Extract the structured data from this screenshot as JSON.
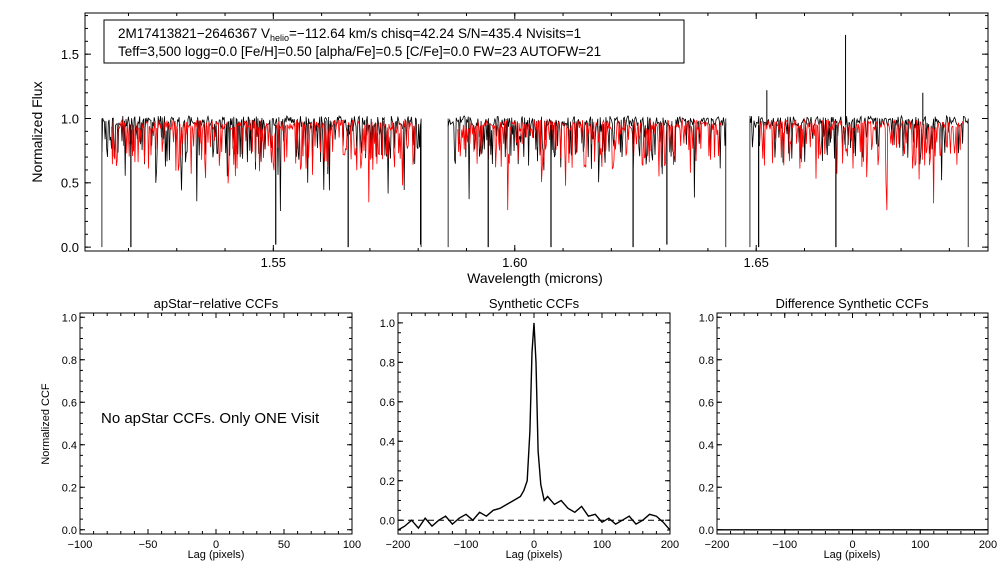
{
  "chart_data": [
    {
      "type": "line",
      "panel": "spectrum",
      "info_line1_a": "2M17413821−2646367  V",
      "info_line1_sub": "helio",
      "info_line1_b": "=−112.64 km/s  chisq=42.24  S/N=435.4  Nvisits=1",
      "info_line2": "Teff=3,500 logg=0.0 [Fe/H]=0.50 [alpha/Fe]=0.5 [C/Fe]=0.0 FW=23 AUTOFW=21",
      "xlabel": "Wavelength (microns)",
      "ylabel": "Normalized Flux",
      "xlim": [
        1.511,
        1.698
      ],
      "ylim": [
        -0.03,
        1.82
      ],
      "xticks": [
        1.55,
        1.6,
        1.65
      ],
      "xtick_labels": [
        "1.55",
        "1.60",
        "1.65"
      ],
      "yticks": [
        0.0,
        0.5,
        1.0,
        1.5
      ],
      "ytick_labels": [
        "0.0",
        "0.5",
        "1.0",
        "1.5"
      ],
      "chips": [
        [
          1.5145,
          1.5806
        ],
        [
          1.5862,
          1.6437
        ],
        [
          1.6487,
          1.6939
        ]
      ],
      "series": [
        {
          "name": "observed",
          "color": "#000000"
        },
        {
          "name": "synthetic",
          "color": "#ff0000"
        }
      ],
      "deep_lines": [
        {
          "x": 1.5205,
          "y": 0.0
        },
        {
          "x": 1.5505,
          "y": 0.02
        },
        {
          "x": 1.5655,
          "y": 0.0
        },
        {
          "x": 1.5805,
          "y": 0.02
        },
        {
          "x": 1.5945,
          "y": 0.0
        },
        {
          "x": 1.6075,
          "y": 0.0
        },
        {
          "x": 1.6245,
          "y": 0.0
        },
        {
          "x": 1.6315,
          "y": 0.02
        },
        {
          "x": 1.6505,
          "y": 0.0
        },
        {
          "x": 1.6665,
          "y": 0.0
        }
      ],
      "spikes": [
        {
          "x": 1.6685,
          "y": 1.65
        },
        {
          "x": 1.6522,
          "y": 1.22
        },
        {
          "x": 1.6845,
          "y": 1.2
        }
      ]
    },
    {
      "type": "line",
      "panel": "apstar",
      "title": "apStar−relative CCFs",
      "xlabel": "Lag (pixels)",
      "ylabel": "Normalized CCF",
      "xlim": [
        -100,
        100
      ],
      "ylim": [
        -0.02,
        1.02
      ],
      "xticks": [
        -100,
        -50,
        0,
        50,
        100
      ],
      "xtick_labels": [
        "−100",
        "−50",
        "0",
        "50",
        "100"
      ],
      "yticks": [
        0.0,
        0.2,
        0.4,
        0.6,
        0.8,
        1.0
      ],
      "ytick_labels": [
        "0.0",
        "0.2",
        "0.4",
        "0.6",
        "0.8",
        "1.0"
      ],
      "note": "No apStar CCFs.  Only ONE Visit"
    },
    {
      "type": "line",
      "panel": "synthetic",
      "title": "Synthetic CCFs",
      "xlabel": "Lag (pixels)",
      "xlim": [
        -200,
        200
      ],
      "ylim": [
        -0.07,
        1.05
      ],
      "xticks": [
        -200,
        -100,
        0,
        100,
        200
      ],
      "xtick_labels": [
        "−200",
        "−100",
        "0",
        "100",
        "200"
      ],
      "yticks": [
        0.0,
        0.2,
        0.4,
        0.6,
        0.8,
        1.0
      ],
      "ytick_labels": [
        "0.0",
        "0.2",
        "0.4",
        "0.6",
        "0.8",
        "1.0"
      ],
      "peak": {
        "x": 0,
        "y": 1.0
      },
      "zero_line": 0.0,
      "x": [
        -200,
        -190,
        -180,
        -170,
        -160,
        -150,
        -140,
        -130,
        -120,
        -110,
        -100,
        -90,
        -80,
        -70,
        -60,
        -50,
        -40,
        -30,
        -20,
        -15,
        -10,
        -6,
        -3,
        0,
        3,
        6,
        10,
        15,
        20,
        30,
        40,
        50,
        60,
        70,
        80,
        90,
        100,
        110,
        120,
        130,
        140,
        150,
        160,
        170,
        180,
        190,
        200
      ],
      "values": [
        -0.05,
        -0.03,
        0.0,
        -0.04,
        0.01,
        -0.03,
        0.0,
        0.02,
        -0.02,
        0.01,
        0.03,
        0.0,
        0.04,
        0.02,
        0.05,
        0.06,
        0.08,
        0.1,
        0.12,
        0.15,
        0.2,
        0.45,
        0.85,
        1.0,
        0.8,
        0.35,
        0.18,
        0.1,
        0.12,
        0.08,
        0.1,
        0.06,
        0.04,
        0.07,
        0.02,
        0.03,
        -0.01,
        0.01,
        -0.02,
        0.0,
        0.02,
        -0.02,
        0.0,
        0.03,
        0.02,
        -0.01,
        -0.05
      ]
    },
    {
      "type": "line",
      "panel": "difference",
      "title": "Difference Synthetic CCFs",
      "xlabel": "Lag (pixels)",
      "xlim": [
        -200,
        200
      ],
      "ylim": [
        -0.02,
        1.02
      ],
      "xticks": [
        -200,
        -100,
        0,
        100,
        200
      ],
      "xtick_labels": [
        "−200",
        "−100",
        "0",
        "100",
        "200"
      ],
      "yticks": [
        0.0,
        0.2,
        0.4,
        0.6,
        0.8,
        1.0
      ],
      "ytick_labels": [
        "0.0",
        "0.2",
        "0.4",
        "0.6",
        "0.8",
        "1.0"
      ],
      "x": [
        -200,
        200
      ],
      "values": [
        0.0,
        0.0
      ]
    }
  ]
}
